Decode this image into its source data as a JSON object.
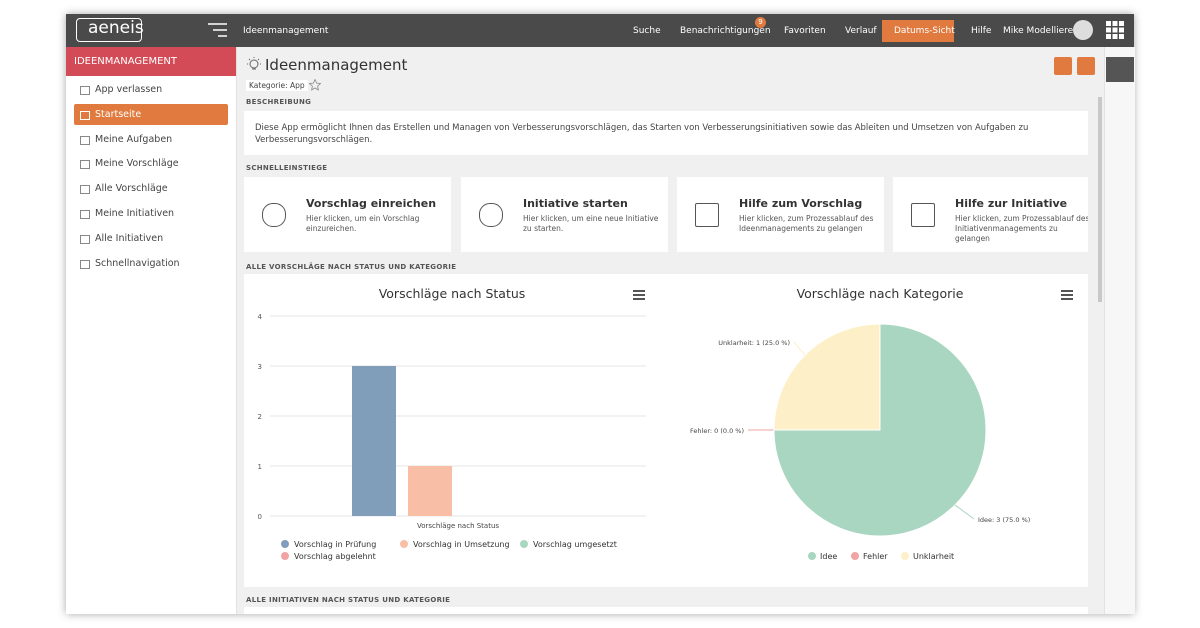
{
  "topbar": {
    "logo": "aeneis",
    "breadcrumb": "Ideenmanagement",
    "nav": [
      "Suche",
      "Benachrichtigungen",
      "Favoriten",
      "Verlauf",
      "Datums-Sicht",
      "Hilfe"
    ],
    "notification_badge": "9",
    "user": "Mike Modellierer"
  },
  "sidebar": {
    "title": "IDEENMANAGEMENT",
    "items": [
      "App verlassen",
      "Startseite",
      "Meine Aufgaben",
      "Meine Vorschläge",
      "Alle Vorschläge",
      "Meine Initiativen",
      "Alle Initiativen",
      "Schnellnavigation"
    ]
  },
  "page": {
    "title": "Ideenmanagement",
    "tag": "Kategorie: App",
    "sections": [
      "BESCHREIBUNG",
      "SCHNELLEINSTIEGE",
      "ALLE VORSCHLÄGE NACH STATUS UND KATEGORIE",
      "ALLE INITIATIVEN NACH STATUS UND KATEGORIE"
    ],
    "description": "Diese App ermöglicht Ihnen das Erstellen und Managen von Verbesserungsvorschlägen, das Starten von Verbesserungsinitiativen sowie das Ableiten und Umsetzen von Aufgaben zu Verbesserungsvorschlägen.",
    "cards": [
      {
        "title": "Vorschlag einreichen",
        "text": "Hier klicken, um ein Vorschlag einzureichen."
      },
      {
        "title": "Initiative starten",
        "text": "Hier klicken, um eine neue Initiative zu starten."
      },
      {
        "title": "Hilfe zum Vorschlag",
        "text": "Hier klicken, zum Prozessablauf des Ideenmanagements zu gelangen"
      },
      {
        "title": "Hilfe zur Initiative",
        "text": "Hier klicken, zum Prozessablauf des Initiativenmanagements zu gelangen"
      }
    ]
  },
  "chart_data": [
    {
      "type": "bar",
      "title": "Vorschläge nach Status",
      "categories": [
        "Vorschläge nach Status"
      ],
      "series": [
        {
          "name": "Vorschlag in Prüfung",
          "color": "#809eba",
          "values": [
            3
          ]
        },
        {
          "name": "Vorschlag in Umsetzung",
          "color": "#f8bfa6",
          "values": [
            1
          ]
        },
        {
          "name": "Vorschlag umgesetzt",
          "color": "#a9d6c0",
          "values": [
            0
          ]
        },
        {
          "name": "Vorschlag abgelehnt",
          "color": "#f2a3a3",
          "values": [
            0
          ]
        }
      ],
      "ylim": [
        0,
        4
      ],
      "yticks": [
        0,
        1,
        2,
        3,
        4
      ],
      "grid": true,
      "legend": "bottom"
    },
    {
      "type": "pie",
      "title": "Vorschläge nach Kategorie",
      "categories": [
        "Idee",
        "Fehler",
        "Unklarheit"
      ],
      "values": [
        3,
        0,
        1
      ],
      "value_labels": [
        "Idee: 3 (75.0 %)",
        "Fehler: 0 (0.0 %)",
        "Unklarheit: 1 (25.0 %)"
      ],
      "colors": [
        "#a9d6c0",
        "#f2a3a3",
        "#fdf0c9"
      ],
      "legend": "bottom"
    }
  ]
}
